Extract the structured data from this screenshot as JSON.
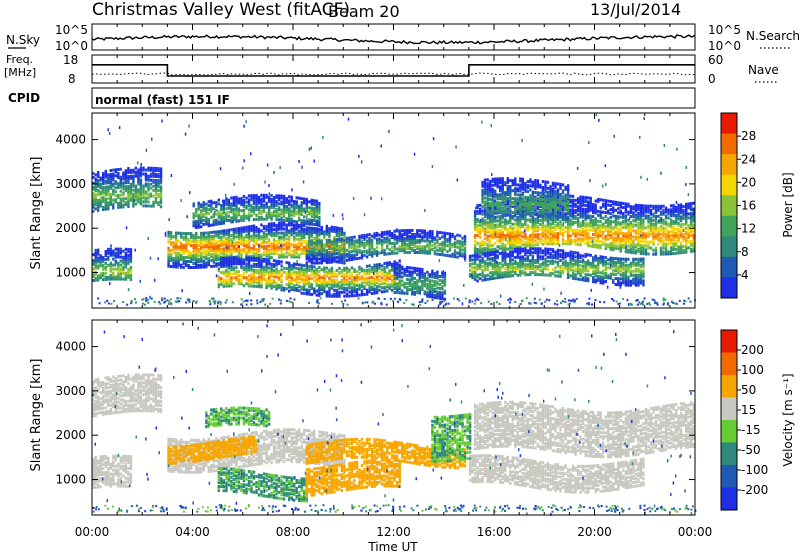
{
  "header": {
    "station": "Christmas Valley West (fitACF)",
    "beam": "Beam 20",
    "date": "13/Jul/2014"
  },
  "noise_panel": {
    "left_label": "N.Sky",
    "left_ticks": [
      "10^5",
      "10^0"
    ],
    "right_label": "N.Search",
    "right_ticks": [
      "10^5",
      "10^0"
    ]
  },
  "freq_panel": {
    "label_line1": "Freq.",
    "label_line2": "[MHz]",
    "left_ticks": [
      "18",
      "8"
    ],
    "right_label": "Nave",
    "right_ticks": [
      "60",
      "0"
    ],
    "freq_segments": [
      {
        "start": 0.0,
        "end": 3.0,
        "freq": 14.5
      },
      {
        "start": 3.0,
        "end": 15.0,
        "freq": 10.5
      },
      {
        "start": 15.0,
        "end": 24.0,
        "freq": 14.5
      }
    ],
    "freq_ylim": [
      8,
      18
    ]
  },
  "cpid": {
    "label": "CPID",
    "text": "normal (fast) 151 IF"
  },
  "chart_data": [
    {
      "type": "heatmap",
      "name": "power",
      "ylabel": "Slant Range [km]",
      "ylim": [
        200,
        4600
      ],
      "yticks": [
        "4000",
        "3000",
        "2000",
        "1000"
      ],
      "colorbar_label": "Power [dB]",
      "colorbar_ticks": [
        "28",
        "24",
        "20",
        "16",
        "12",
        "8",
        "4"
      ],
      "colorbar_range": [
        0,
        32
      ],
      "colors": [
        "#1e2fe6",
        "#1f5ab4",
        "#2d8a7a",
        "#3fa35a",
        "#8ac23a",
        "#f4d600",
        "#f7a600",
        "#f06a00",
        "#e81a00"
      ],
      "bands": [
        {
          "t0": 0.0,
          "t1": 2.8,
          "r0": 2350,
          "r1": 3250,
          "core": 2700,
          "peak": 14
        },
        {
          "t0": 0.0,
          "t1": 1.6,
          "r0": 700,
          "r1": 1400,
          "core": 1000,
          "peak": 16
        },
        {
          "t0": 3.0,
          "t1": 10.0,
          "r0": 1200,
          "r1": 2000,
          "core": 1550,
          "peak": 26
        },
        {
          "t0": 4.0,
          "t1": 9.0,
          "r0": 2050,
          "r1": 2600,
          "core": 2300,
          "peak": 14
        },
        {
          "t0": 5.0,
          "t1": 12.2,
          "r0": 550,
          "r1": 1200,
          "core": 850,
          "peak": 24
        },
        {
          "t0": 8.5,
          "t1": 14.8,
          "r0": 1300,
          "r1": 1800,
          "core": 1550,
          "peak": 14
        },
        {
          "t0": 12.0,
          "t1": 14.0,
          "r0": 400,
          "r1": 1000,
          "core": 700,
          "peak": 12
        },
        {
          "t0": 15.2,
          "t1": 24.0,
          "r0": 1500,
          "r1": 2600,
          "core": 1800,
          "peak": 24
        },
        {
          "t0": 15.0,
          "t1": 22.0,
          "r0": 800,
          "r1": 1400,
          "core": 1050,
          "peak": 16
        },
        {
          "t0": 15.5,
          "t1": 19.0,
          "r0": 2200,
          "r1": 3000,
          "core": 2500,
          "peak": 12
        }
      ]
    },
    {
      "type": "heatmap",
      "name": "velocity",
      "ylabel": "Slant Range [km]",
      "ylim": [
        200,
        4600
      ],
      "yticks": [
        "4000",
        "3000",
        "2000",
        "1000"
      ],
      "colorbar_label": "Velocity [m s⁻¹]",
      "colorbar_ticks": [
        "200",
        "100",
        "50",
        "15",
        "-15",
        "-50",
        "-100",
        "-200"
      ],
      "colors": [
        "#1e2fe6",
        "#1f5ab4",
        "#2d8a7a",
        "#66cc33",
        "#c8c8c0",
        "#f7a600",
        "#f06a00",
        "#e81a00"
      ],
      "bands": [
        {
          "t0": 0.0,
          "t1": 2.8,
          "r0": 2400,
          "r1": 3250,
          "v": 0
        },
        {
          "t0": 0.0,
          "t1": 1.6,
          "r0": 700,
          "r1": 1400,
          "v": 0
        },
        {
          "t0": 3.0,
          "t1": 10.0,
          "r0": 1250,
          "r1": 2000,
          "v": 0
        },
        {
          "t0": 3.0,
          "t1": 6.5,
          "r0": 1450,
          "r1": 1850,
          "v": -40
        },
        {
          "t0": 4.5,
          "t1": 7.0,
          "r0": 2100,
          "r1": 2500,
          "v": 30
        },
        {
          "t0": 5.0,
          "t1": 8.5,
          "r0": 600,
          "r1": 1100,
          "v": 35
        },
        {
          "t0": 8.5,
          "t1": 12.2,
          "r0": 700,
          "r1": 1300,
          "v": -40
        },
        {
          "t0": 8.5,
          "t1": 14.8,
          "r0": 1350,
          "r1": 1800,
          "v": -30
        },
        {
          "t0": 13.5,
          "t1": 15.0,
          "r0": 1500,
          "r1": 2500,
          "v": 30
        },
        {
          "t0": 15.2,
          "t1": 24.0,
          "r0": 1600,
          "r1": 2600,
          "v": 0
        },
        {
          "t0": 15.0,
          "t1": 22.0,
          "r0": 800,
          "r1": 1400,
          "v": 0
        }
      ]
    }
  ],
  "xaxis": {
    "label": "Time UT",
    "ticks": [
      "00:00",
      "04:00",
      "08:00",
      "12:00",
      "16:00",
      "20:00",
      "00:00"
    ],
    "xlim": [
      0,
      24
    ]
  }
}
